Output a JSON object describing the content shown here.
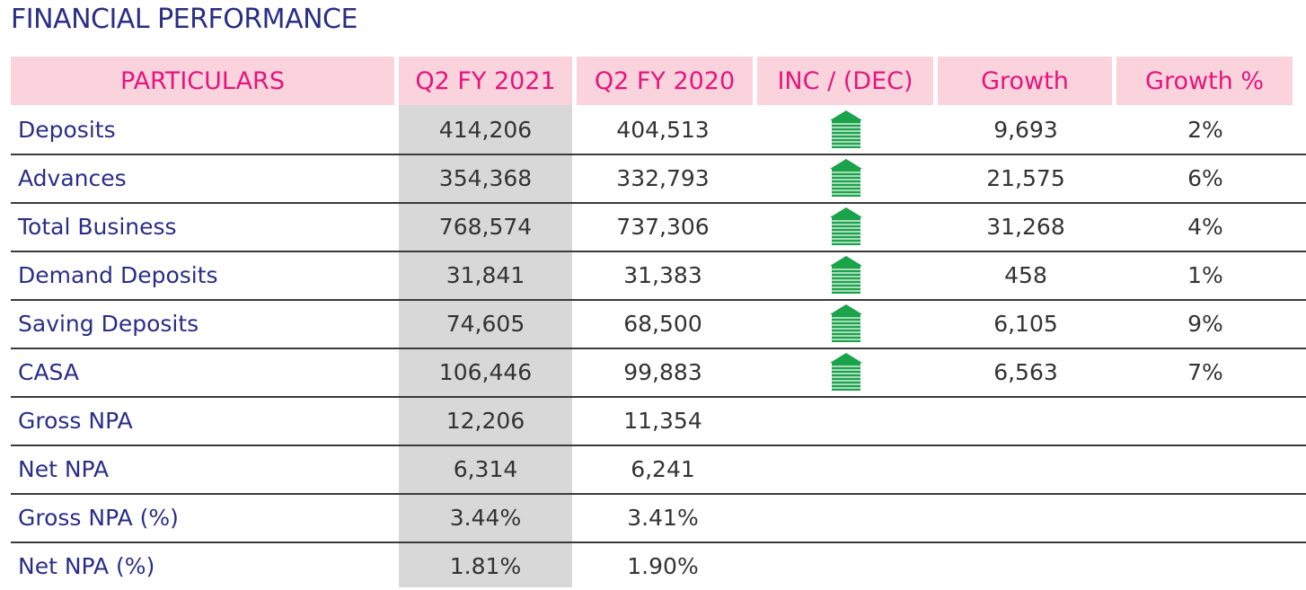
{
  "title": "FINANCIAL PERFORMANCE",
  "headers": [
    "PARTICULARS",
    "Q2 FY 2021",
    "Q2 FY 2020",
    "INC / (DEC)",
    "Growth",
    "Growth %"
  ],
  "colors": {
    "title": "#2a2e86",
    "header_bg": "#fbd3dd",
    "header_text": "#e5157d",
    "shaded_column": "#d8d8d8",
    "arrow": "#1aa34a"
  },
  "rows": [
    {
      "label": "Deposits",
      "q2fy2021": "414,206",
      "q2fy2020": "404,513",
      "arrow": "up-arrow-icon",
      "growth": "9,693",
      "growth_pct": "2%"
    },
    {
      "label": "Advances",
      "q2fy2021": "354,368",
      "q2fy2020": "332,793",
      "arrow": "up-arrow-icon",
      "growth": "21,575",
      "growth_pct": "6%"
    },
    {
      "label": "Total Business",
      "q2fy2021": "768,574",
      "q2fy2020": "737,306",
      "arrow": "up-arrow-icon",
      "growth": "31,268",
      "growth_pct": "4%"
    },
    {
      "label": "Demand Deposits",
      "q2fy2021": "31,841",
      "q2fy2020": "31,383",
      "arrow": "up-arrow-icon",
      "growth": "458",
      "growth_pct": "1%"
    },
    {
      "label": "Saving Deposits",
      "q2fy2021": "74,605",
      "q2fy2020": "68,500",
      "arrow": "up-arrow-icon",
      "growth": "6,105",
      "growth_pct": "9%"
    },
    {
      "label": "CASA",
      "q2fy2021": "106,446",
      "q2fy2020": "99,883",
      "arrow": "up-arrow-icon",
      "growth": "6,563",
      "growth_pct": "7%"
    },
    {
      "label": "Gross NPA",
      "q2fy2021": "12,206",
      "q2fy2020": "11,354",
      "arrow": "",
      "growth": "",
      "growth_pct": ""
    },
    {
      "label": "Net NPA",
      "q2fy2021": "6,314",
      "q2fy2020": "6,241",
      "arrow": "",
      "growth": "",
      "growth_pct": ""
    },
    {
      "label": "Gross NPA (%)",
      "q2fy2021": "3.44%",
      "q2fy2020": "3.41%",
      "arrow": "",
      "growth": "",
      "growth_pct": ""
    },
    {
      "label": "Net NPA (%)",
      "q2fy2021": "1.81%",
      "q2fy2020": "1.90%",
      "arrow": "",
      "growth": "",
      "growth_pct": ""
    }
  ]
}
